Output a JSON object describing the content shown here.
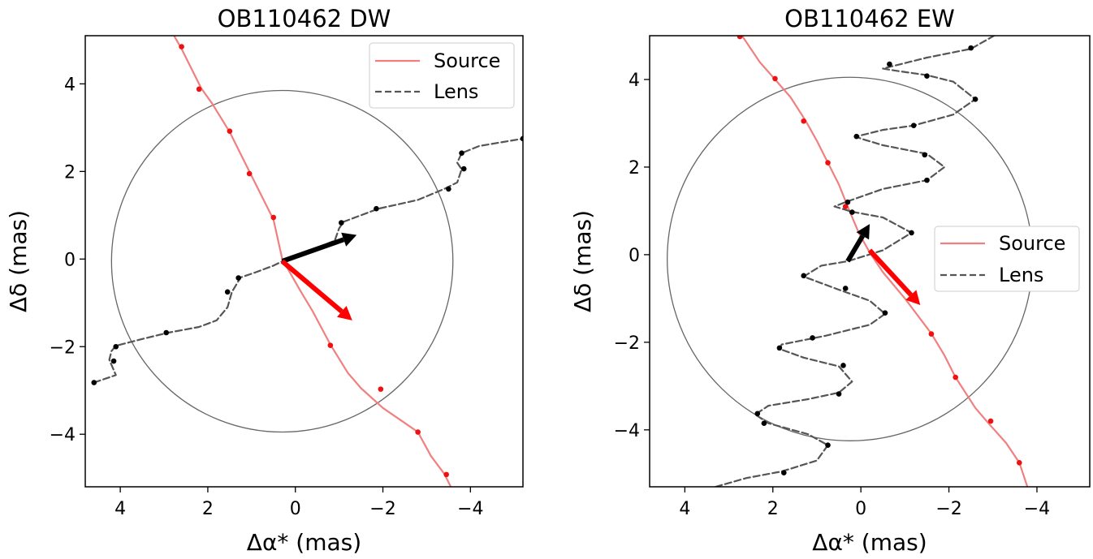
{
  "chart_data": [
    {
      "type": "line",
      "title": "OB110462 DW",
      "xlabel": "Δα* (mas)",
      "ylabel": "Δδ (mas)",
      "xlim": [
        4.8,
        -5.2
      ],
      "ylim": [
        -5.2,
        5.1
      ],
      "x_ticks": [
        4,
        2,
        0,
        -2,
        -4
      ],
      "x_tick_labels": [
        "4",
        "2",
        "0",
        "−2",
        "−4"
      ],
      "y_ticks": [
        -4,
        -2,
        0,
        2,
        4
      ],
      "y_tick_labels": [
        "−4",
        "−2",
        "0",
        "2",
        "4"
      ],
      "legend_position": "top-right",
      "circle": {
        "center": [
          0.3,
          -0.05
        ],
        "radius": 3.9,
        "color": "#666666"
      },
      "series": [
        {
          "name": "Source",
          "style": "solid",
          "color": "#f08080",
          "line": [
            [
              3.0,
              5.5
            ],
            [
              2.6,
              4.8
            ],
            [
              2.15,
              3.9
            ],
            [
              1.9,
              3.55
            ],
            [
              1.5,
              2.9
            ],
            [
              1.25,
              2.4
            ],
            [
              1.0,
              1.9
            ],
            [
              0.7,
              1.3
            ],
            [
              0.5,
              0.9
            ],
            [
              0.3,
              0.0
            ],
            [
              -0.1,
              -0.7
            ],
            [
              -0.4,
              -1.2
            ],
            [
              -0.8,
              -1.95
            ],
            [
              -1.2,
              -2.6
            ],
            [
              -1.5,
              -2.95
            ],
            [
              -2.0,
              -3.4
            ],
            [
              -2.8,
              -3.95
            ],
            [
              -3.1,
              -4.5
            ],
            [
              -3.4,
              -4.9
            ],
            [
              -3.6,
              -5.3
            ]
          ],
          "epochs": [
            [
              2.6,
              4.85
            ],
            [
              2.2,
              3.88
            ],
            [
              1.5,
              2.92
            ],
            [
              1.05,
              1.95
            ],
            [
              0.5,
              0.95
            ],
            [
              -0.8,
              -1.97
            ],
            [
              -1.95,
              -2.97
            ],
            [
              -2.8,
              -3.95
            ],
            [
              -3.45,
              -4.92
            ]
          ]
        },
        {
          "name": "Lens",
          "style": "dashed",
          "color": "#555555",
          "line": [
            [
              4.6,
              -2.82
            ],
            [
              4.1,
              -2.65
            ],
            [
              4.25,
              -2.3
            ],
            [
              4.2,
              -2.1
            ],
            [
              4.1,
              -1.98
            ],
            [
              3.4,
              -1.8
            ],
            [
              2.9,
              -1.68
            ],
            [
              2.2,
              -1.55
            ],
            [
              1.8,
              -1.4
            ],
            [
              1.55,
              -1.1
            ],
            [
              1.45,
              -0.75
            ],
            [
              1.25,
              -0.42
            ],
            [
              0.9,
              -0.3
            ],
            [
              0.5,
              -0.15
            ],
            [
              0.3,
              -0.05
            ],
            [
              -0.1,
              0.1
            ],
            [
              -0.6,
              0.3
            ],
            [
              -0.9,
              0.42
            ],
            [
              -1.0,
              0.7
            ],
            [
              -1.1,
              0.85
            ],
            [
              -1.5,
              1.0
            ],
            [
              -1.9,
              1.15
            ],
            [
              -2.8,
              1.35
            ],
            [
              -3.4,
              1.6
            ],
            [
              -3.7,
              1.75
            ],
            [
              -3.8,
              2.05
            ],
            [
              -3.7,
              2.2
            ],
            [
              -3.8,
              2.42
            ],
            [
              -4.2,
              2.58
            ],
            [
              -4.6,
              2.65
            ],
            [
              -5.2,
              2.75
            ]
          ],
          "epochs": [
            [
              4.6,
              -2.82
            ],
            [
              4.15,
              -2.33
            ],
            [
              4.1,
              -2.0
            ],
            [
              2.95,
              -1.68
            ],
            [
              1.55,
              -0.75
            ],
            [
              1.3,
              -0.43
            ],
            [
              -1.05,
              0.83
            ],
            [
              -1.85,
              1.15
            ],
            [
              -3.5,
              1.6
            ],
            [
              -3.85,
              2.06
            ],
            [
              -3.8,
              2.42
            ],
            [
              -5.2,
              2.75
            ]
          ]
        }
      ],
      "arrows": [
        {
          "color": "#000000",
          "from": [
            0.3,
            -0.05
          ],
          "to": [
            -1.4,
            0.55
          ]
        },
        {
          "color": "#ff0000",
          "from": [
            0.3,
            -0.05
          ],
          "to": [
            -1.3,
            -1.4
          ]
        }
      ]
    },
    {
      "type": "line",
      "title": "OB110462 EW",
      "xlabel": "Δα* (mas)",
      "ylabel": "Δδ (mas)",
      "xlim": [
        4.8,
        -5.2
      ],
      "ylim": [
        -5.3,
        5.0
      ],
      "x_ticks": [
        4,
        2,
        0,
        -2,
        -4
      ],
      "x_tick_labels": [
        "4",
        "2",
        "0",
        "−2",
        "−4"
      ],
      "y_ticks": [
        -4,
        -2,
        0,
        2,
        4
      ],
      "y_tick_labels": [
        "−4",
        "−2",
        "0",
        "2",
        "4"
      ],
      "legend_position": "center-right",
      "circle": {
        "center": [
          0.25,
          -0.1
        ],
        "radius": 4.15,
        "color": "#666666"
      },
      "series": [
        {
          "name": "Source",
          "style": "solid",
          "color": "#f08080",
          "line": [
            [
              2.9,
              5.3
            ],
            [
              2.7,
              5.0
            ],
            [
              2.3,
              4.4
            ],
            [
              1.95,
              4.0
            ],
            [
              1.6,
              3.6
            ],
            [
              1.25,
              3.05
            ],
            [
              1.0,
              2.6
            ],
            [
              0.75,
              2.1
            ],
            [
              0.5,
              1.6
            ],
            [
              0.3,
              1.1
            ],
            [
              0.05,
              0.5
            ],
            [
              -0.2,
              0.05
            ],
            [
              -0.5,
              -0.4
            ],
            [
              -1.0,
              -1.0
            ],
            [
              -1.6,
              -1.8
            ],
            [
              -1.9,
              -2.3
            ],
            [
              -2.15,
              -2.8
            ],
            [
              -2.6,
              -3.5
            ],
            [
              -2.9,
              -3.85
            ],
            [
              -3.3,
              -4.3
            ],
            [
              -3.6,
              -4.75
            ],
            [
              -3.8,
              -5.35
            ]
          ],
          "epochs": [
            [
              2.75,
              4.98
            ],
            [
              1.95,
              4.02
            ],
            [
              1.3,
              3.05
            ],
            [
              0.75,
              2.1
            ],
            [
              0.35,
              1.1
            ],
            [
              -1.6,
              -1.81
            ],
            [
              -2.15,
              -2.8
            ],
            [
              -2.95,
              -3.8
            ],
            [
              -3.6,
              -4.75
            ]
          ]
        },
        {
          "name": "Lens",
          "style": "dashed",
          "color": "#555555",
          "line": [
            [
              3.3,
              -5.3
            ],
            [
              2.6,
              -5.1
            ],
            [
              1.8,
              -4.95
            ],
            [
              1.0,
              -4.7
            ],
            [
              0.75,
              -4.35
            ],
            [
              1.2,
              -4.1
            ],
            [
              2.1,
              -3.85
            ],
            [
              2.4,
              -3.65
            ],
            [
              2.1,
              -3.45
            ],
            [
              1.2,
              -3.3
            ],
            [
              0.5,
              -3.15
            ],
            [
              0.2,
              -2.9
            ],
            [
              0.5,
              -2.55
            ],
            [
              1.3,
              -2.35
            ],
            [
              1.85,
              -2.15
            ],
            [
              1.8,
              -2.05
            ],
            [
              1.3,
              -1.95
            ],
            [
              0.8,
              -1.85
            ],
            [
              -0.2,
              -1.6
            ],
            [
              -0.55,
              -1.35
            ],
            [
              -0.2,
              -1.05
            ],
            [
              0.5,
              -0.8
            ],
            [
              1.3,
              -0.5
            ],
            [
              0.9,
              -0.25
            ],
            [
              0.3,
              -0.15
            ],
            [
              -0.5,
              0.1
            ],
            [
              -1.15,
              0.5
            ],
            [
              -0.5,
              0.85
            ],
            [
              0.2,
              0.98
            ],
            [
              0.6,
              1.1
            ],
            [
              0.35,
              1.2
            ],
            [
              -0.5,
              1.5
            ],
            [
              -1.5,
              1.7
            ],
            [
              -1.9,
              2.0
            ],
            [
              -1.5,
              2.3
            ],
            [
              -0.5,
              2.5
            ],
            [
              0.0,
              2.65
            ],
            [
              0.1,
              2.7
            ],
            [
              -0.5,
              2.85
            ],
            [
              -1.2,
              2.95
            ],
            [
              -2.1,
              3.2
            ],
            [
              -2.6,
              3.55
            ],
            [
              -2.1,
              3.95
            ],
            [
              -1.5,
              4.1
            ],
            [
              -0.8,
              4.2
            ],
            [
              -0.5,
              4.25
            ],
            [
              -1.5,
              4.5
            ],
            [
              -2.5,
              4.7
            ],
            [
              -3.2,
              5.1
            ]
          ],
          "epochs": [
            [
              1.75,
              -4.98
            ],
            [
              0.75,
              -4.35
            ],
            [
              2.2,
              -3.85
            ],
            [
              2.35,
              -3.63
            ],
            [
              0.5,
              -3.18
            ],
            [
              0.4,
              -2.53
            ],
            [
              1.85,
              -2.13
            ],
            [
              1.1,
              -1.9
            ],
            [
              -0.55,
              -1.33
            ],
            [
              0.35,
              -0.77
            ],
            [
              1.3,
              -0.48
            ],
            [
              -1.15,
              0.5
            ],
            [
              0.2,
              0.97
            ],
            [
              0.3,
              1.2
            ],
            [
              -1.5,
              1.7
            ],
            [
              -1.45,
              2.28
            ],
            [
              0.1,
              2.7
            ],
            [
              -1.2,
              2.95
            ],
            [
              -2.6,
              3.55
            ],
            [
              -1.5,
              4.08
            ],
            [
              -0.65,
              4.35
            ],
            [
              -2.5,
              4.72
            ]
          ]
        }
      ],
      "arrows": [
        {
          "color": "#000000",
          "from": [
            0.3,
            -0.15
          ],
          "to": [
            -0.2,
            0.7
          ]
        },
        {
          "color": "#ff0000",
          "from": [
            -0.2,
            0.1
          ],
          "to": [
            -1.35,
            -1.15
          ]
        }
      ]
    }
  ]
}
